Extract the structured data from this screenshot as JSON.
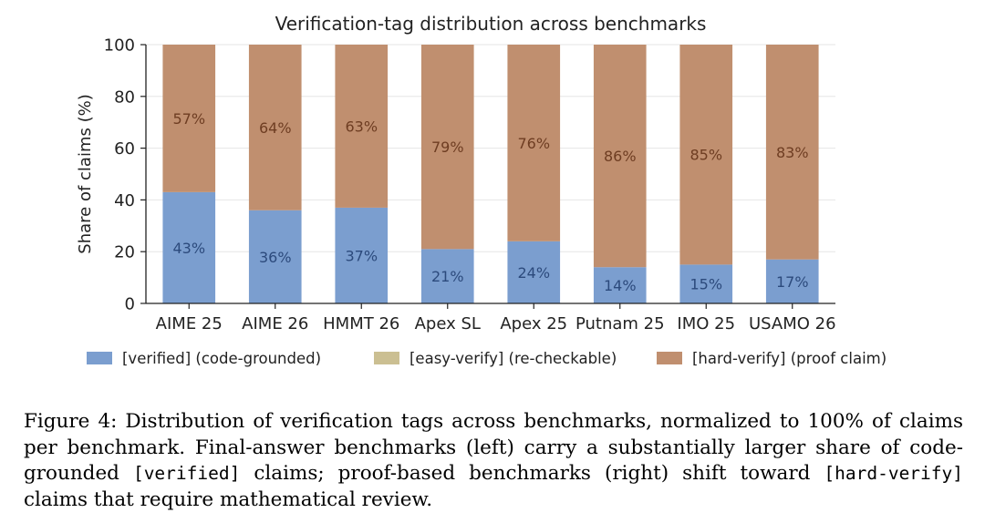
{
  "chart_data": {
    "type": "bar",
    "stacked": true,
    "title": "Verification-tag distribution across benchmarks",
    "xlabel": "",
    "ylabel": "Share of claims (%)",
    "ylim": [
      0,
      100
    ],
    "yticks": [
      0,
      20,
      40,
      60,
      80,
      100
    ],
    "grid": "horizontal",
    "legend": "bottom",
    "categories": [
      "AIME 25",
      "AIME 26",
      "HMMT 26",
      "Apex SL",
      "Apex 25",
      "Putnam 25",
      "IMO 25",
      "USAMO 26"
    ],
    "series": [
      {
        "name": "[verified] (code-grounded)",
        "color": "#7b9ecf",
        "label_color": "#2c4a7c",
        "values": [
          43,
          36,
          37,
          21,
          24,
          14,
          15,
          17
        ],
        "labels": [
          "43%",
          "36%",
          "37%",
          "21%",
          "24%",
          "14%",
          "15%",
          "17%"
        ]
      },
      {
        "name": "[easy-verify] (re-checkable)",
        "color": "#cbbf92",
        "values": [
          0,
          0,
          0,
          0,
          0,
          0,
          0,
          0
        ],
        "labels": []
      },
      {
        "name": "[hard-verify] (proof claim)",
        "color": "#c08f6f",
        "label_color": "#6e3d22",
        "values": [
          57,
          64,
          63,
          79,
          76,
          86,
          85,
          83
        ],
        "labels": [
          "57%",
          "64%",
          "63%",
          "79%",
          "76%",
          "86%",
          "85%",
          "83%"
        ]
      }
    ]
  },
  "caption": {
    "p1": "Figure 4: Distribution of verification tags across benchmarks, normalized to 100% of claims per benchmark. Final-answer benchmarks (left) carry a substantially larger share of code-grounded ",
    "code1": "[verified]",
    "p2": " claims; proof-based benchmarks (right) shift toward ",
    "code2": "[hard-verify]",
    "p3": " claims that require mathematical review."
  }
}
